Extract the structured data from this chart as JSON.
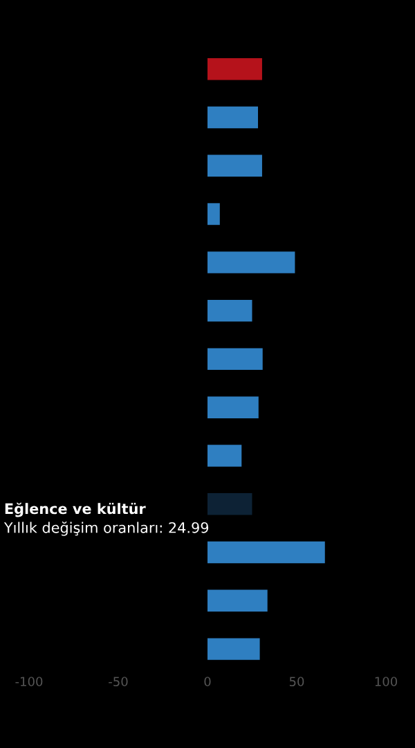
{
  "chart_data": {
    "type": "bar",
    "orientation": "horizontal",
    "categories": [
      null,
      null,
      null,
      null,
      null,
      null,
      null,
      null,
      null,
      null,
      null,
      null,
      null
    ],
    "series": [
      {
        "values": [
          30.6,
          28.3,
          30.6,
          6.9,
          49,
          25,
          30.9,
          28.6,
          19.1,
          24.99,
          65.8,
          33.6,
          29.3
        ],
        "colors": [
          "#b5121b",
          "#2f7fc1",
          "#2f7fc1",
          "#2f7fc1",
          "#2f7fc1",
          "#2f7fc1",
          "#2f7fc1",
          "#2f7fc1",
          "#2f7fc1",
          "#0d2235",
          "#2f7fc1",
          "#2f7fc1",
          "#2f7fc1"
        ]
      }
    ],
    "xlim": [
      -100,
      100
    ],
    "xticks": [
      -100,
      -50,
      0,
      50,
      100
    ],
    "tick_labels": "x",
    "grid": false,
    "annotations": [
      "Eğlence ve kültür",
      "Yıllık değişim oranları: 24.99"
    ]
  }
}
